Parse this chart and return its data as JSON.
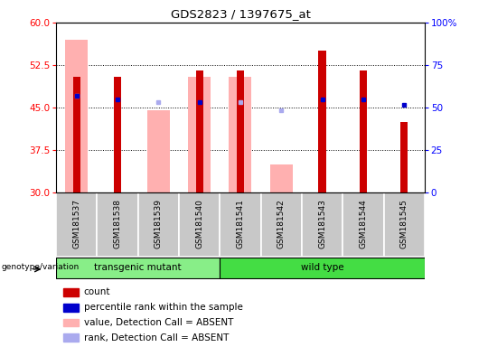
{
  "title": "GDS2823 / 1397675_at",
  "samples": [
    "GSM181537",
    "GSM181538",
    "GSM181539",
    "GSM181540",
    "GSM181541",
    "GSM181542",
    "GSM181543",
    "GSM181544",
    "GSM181545"
  ],
  "count_values": [
    50.5,
    50.5,
    null,
    51.5,
    51.5,
    null,
    55.0,
    51.5,
    42.5
  ],
  "pink_values": [
    57.0,
    null,
    44.5,
    50.5,
    50.5,
    35.0,
    null,
    null,
    null
  ],
  "blue_rank": [
    47.0,
    46.5,
    null,
    46.0,
    null,
    null,
    46.5,
    46.5,
    45.5
  ],
  "lightblue_rank": [
    47.0,
    null,
    46.0,
    null,
    46.0,
    44.5,
    null,
    null,
    null
  ],
  "ylim_left": [
    30,
    60
  ],
  "ylim_right": [
    0,
    100
  ],
  "yticks_left": [
    30,
    37.5,
    45,
    52.5,
    60
  ],
  "yticks_right": [
    0,
    25,
    50,
    75,
    100
  ],
  "ytick_labels_right": [
    "0",
    "25",
    "50",
    "75",
    "100%"
  ],
  "group1_label": "transgenic mutant",
  "group2_label": "wild type",
  "group1_indices": [
    0,
    1,
    2,
    3
  ],
  "group2_indices": [
    4,
    5,
    6,
    7,
    8
  ],
  "genotype_label": "genotype/variation",
  "legend_labels": [
    "count",
    "percentile rank within the sample",
    "value, Detection Call = ABSENT",
    "rank, Detection Call = ABSENT"
  ],
  "count_color": "#cc0000",
  "pink_color": "#ffb0b0",
  "blue_color": "#0000cc",
  "lightblue_color": "#aaaaee",
  "pink_bar_width": 0.55,
  "red_bar_width": 0.18,
  "background_color": "#ffffff",
  "grid_color": "#000000",
  "group1_bg": "#88ee88",
  "group2_bg": "#44dd44",
  "xtick_bg": "#c8c8c8"
}
